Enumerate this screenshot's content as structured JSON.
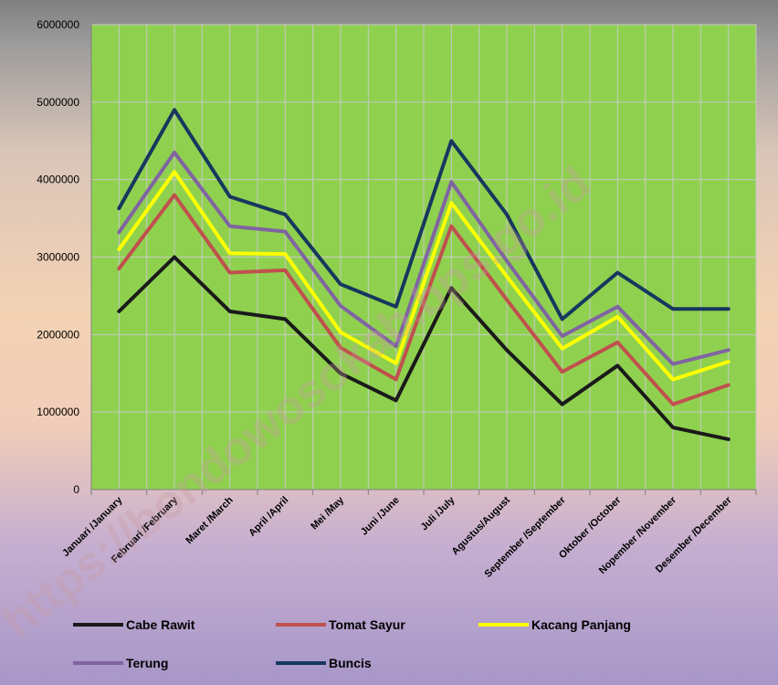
{
  "chart_data": {
    "type": "line",
    "categories": [
      "Januari /January",
      "Februari /February",
      "Maret /March",
      "April /April",
      "Mei  /May",
      "Juni /June",
      "Juli /July",
      "Agustus/August",
      "September /September",
      "Oktober /October",
      "Nopember /November",
      "Desember /December"
    ],
    "ylim": [
      0,
      6000000
    ],
    "yticks": [
      0,
      1000000,
      2000000,
      3000000,
      4000000,
      5000000,
      6000000
    ],
    "grid": true,
    "legend_position": "bottom",
    "plot_background": "#8fd14f",
    "watermark": "https://bondowosokab.bps.go.id",
    "series": [
      {
        "name": "Cabe Rawit",
        "color": "#1a1a1a",
        "values": [
          2300000,
          3000000,
          2300000,
          2200000,
          1500000,
          1150000,
          2600000,
          1800000,
          1100000,
          1600000,
          800000,
          650000
        ]
      },
      {
        "name": "Tomat Sayur",
        "color": "#c0504d",
        "values": [
          2850000,
          3800000,
          2800000,
          2830000,
          1830000,
          1420000,
          3400000,
          2450000,
          1520000,
          1900000,
          1100000,
          1350000
        ]
      },
      {
        "name": "Kacang Panjang",
        "color": "#ffff00",
        "values": [
          3100000,
          4100000,
          3050000,
          3040000,
          2030000,
          1630000,
          3700000,
          2750000,
          1820000,
          2230000,
          1420000,
          1650000
        ]
      },
      {
        "name": "Terung",
        "color": "#8064a2",
        "values": [
          3320000,
          4350000,
          3400000,
          3330000,
          2370000,
          1850000,
          3970000,
          2950000,
          1980000,
          2360000,
          1620000,
          1800000
        ]
      },
      {
        "name": "Buncis",
        "color": "#17375e",
        "values": [
          3630000,
          4900000,
          3780000,
          3550000,
          2650000,
          2360000,
          4500000,
          3550000,
          2200000,
          2800000,
          2330000,
          2330000
        ]
      }
    ]
  }
}
